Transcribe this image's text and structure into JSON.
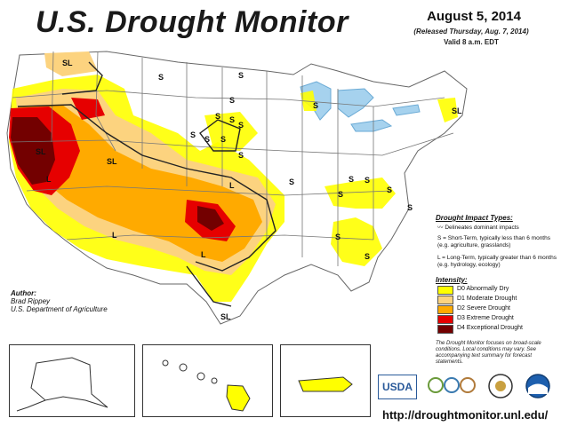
{
  "header": {
    "title": "U.S. Drought Monitor",
    "date": "August 5, 2014",
    "released": "(Released Thursday, Aug. 7, 2014)",
    "valid": "Valid 8 a.m. EDT"
  },
  "map_labels": [
    "SL",
    "SL",
    "SL",
    "SL",
    "S",
    "S",
    "S",
    "S",
    "S",
    "S",
    "S",
    "S",
    "S",
    "S",
    "S",
    "L",
    "L",
    "L",
    "L",
    "S",
    "S",
    "S",
    "S",
    "S",
    "S",
    "S",
    "S",
    "SL",
    "SL"
  ],
  "legend": {
    "impact_title": "Drought Impact Types:",
    "delineates": "Delineates dominant impacts",
    "short_term": "S = Short-Term, typically less than 6 months (e.g. agriculture, grasslands)",
    "long_term": "L = Long-Term, typically greater than 6 months (e.g. hydrology, ecology)",
    "intensity_title": "Intensity:",
    "levels": [
      {
        "label": "D0 Abnormally Dry",
        "color": "#ffff00"
      },
      {
        "label": "D1 Moderate Drought",
        "color": "#fcd37f"
      },
      {
        "label": "D2 Severe Drought",
        "color": "#ffaa00"
      },
      {
        "label": "D3 Extreme Drought",
        "color": "#e60000"
      },
      {
        "label": "D4 Exceptional Drought",
        "color": "#730000"
      }
    ]
  },
  "author": {
    "label": "Author:",
    "name": "Brad Rippey",
    "org": "U.S. Department of Agriculture"
  },
  "note": "The Drought Monitor focuses on broad-scale conditions. Local conditions may vary. See accompanying text summary for forecast statements.",
  "logos": {
    "usda": "USDA"
  },
  "url": "http://droughtmonitor.unl.edu/"
}
